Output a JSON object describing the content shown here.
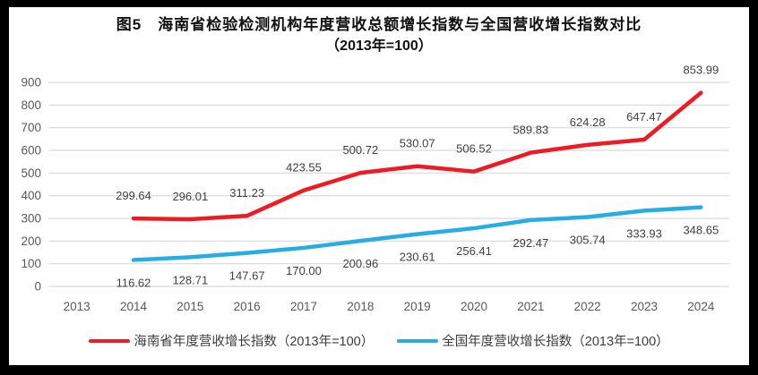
{
  "title": {
    "line1": "图5　海南省检验检测机构年度营收总额增长指数与全国营收增长指数对比",
    "line2": "（2013年=100）"
  },
  "chart_data": {
    "type": "line",
    "categories": [
      "2013",
      "2014",
      "2015",
      "2016",
      "2017",
      "2018",
      "2019",
      "2020",
      "2021",
      "2022",
      "2023",
      "2024"
    ],
    "series": [
      {
        "name": "海南省年度营收增长指数（2013年=100）",
        "color": "#ed1c24",
        "label_position": "above",
        "values": [
          null,
          299.64,
          296.01,
          311.23,
          423.55,
          500.72,
          530.07,
          506.52,
          589.83,
          624.28,
          647.47,
          853.99
        ]
      },
      {
        "name": "全国年度营收增长指数（2013年=100）",
        "color": "#27ade4",
        "label_position": "below",
        "values": [
          null,
          116.62,
          128.71,
          147.67,
          170.0,
          200.96,
          230.61,
          256.41,
          292.47,
          305.74,
          333.93,
          348.65
        ]
      }
    ],
    "ylim": [
      0,
      900
    ],
    "ytick_step": 100,
    "grid": true,
    "legend_position": "bottom",
    "label_decimals": 2,
    "data_labels": true,
    "colors": {
      "gridline": "#d9d9d9",
      "tick_text": "#595959",
      "data_label": "#404040"
    }
  }
}
